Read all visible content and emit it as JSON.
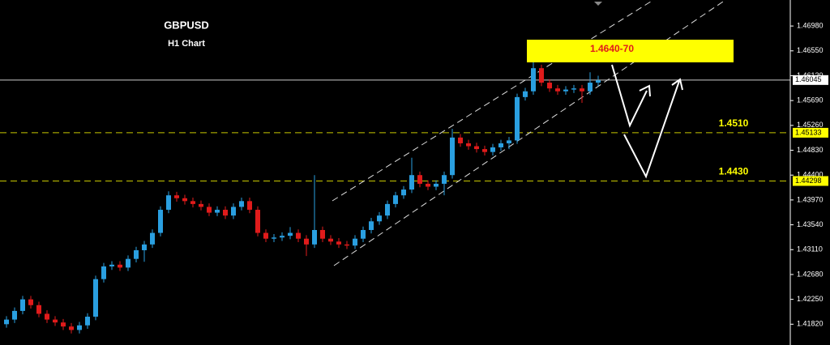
{
  "chart_data": {
    "type": "candlestick",
    "title": "GBPUSD",
    "subtitle": "H1 Chart",
    "up_color": "#2a9fe0",
    "down_color": "#e01b1b",
    "ylim": [
      1.4146,
      1.4743
    ],
    "yticks": [
      {
        "value": 1.4698,
        "label": "1.46980"
      },
      {
        "value": 1.4655,
        "label": "1.46550"
      },
      {
        "value": 1.4612,
        "label": "1.46120"
      },
      {
        "value": 1.4569,
        "label": "1.45690"
      },
      {
        "value": 1.4526,
        "label": "1.45260"
      },
      {
        "value": 1.4483,
        "label": "1.44830"
      },
      {
        "value": 1.444,
        "label": "1.44400"
      },
      {
        "value": 1.4397,
        "label": "1.43970"
      },
      {
        "value": 1.4354,
        "label": "1.43540"
      },
      {
        "value": 1.4311,
        "label": "1.43110"
      },
      {
        "value": 1.4268,
        "label": "1.42680"
      },
      {
        "value": 1.4225,
        "label": "1.42250"
      },
      {
        "value": 1.4182,
        "label": "1.41820"
      }
    ],
    "price_lines": [
      {
        "value": 1.46045,
        "label": "1.46045",
        "color": "#ffffff",
        "note": "current"
      },
      {
        "value": 1.45133,
        "label": "1.45133",
        "color": "#c8c800",
        "level": "1.4510"
      },
      {
        "value": 1.44298,
        "label": "1.44298",
        "color": "#c8c800",
        "level": "1.4430"
      }
    ],
    "zone_label": "1.4640-70",
    "ohlc": [
      [
        1.4182,
        1.4196,
        1.4176,
        1.419
      ],
      [
        1.419,
        1.4211,
        1.4184,
        1.4205
      ],
      [
        1.4205,
        1.4231,
        1.4199,
        1.4225
      ],
      [
        1.4225,
        1.4231,
        1.4209,
        1.4215
      ],
      [
        1.4215,
        1.4221,
        1.4194,
        1.42
      ],
      [
        1.42,
        1.4206,
        1.4184,
        1.419
      ],
      [
        1.419,
        1.4196,
        1.4179,
        1.4185
      ],
      [
        1.4185,
        1.4191,
        1.4172,
        1.4178
      ],
      [
        1.4178,
        1.4184,
        1.4166,
        1.4172
      ],
      [
        1.4172,
        1.4186,
        1.4166,
        1.418
      ],
      [
        1.418,
        1.4201,
        1.4174,
        1.4195
      ],
      [
        1.4195,
        1.4266,
        1.4189,
        1.426
      ],
      [
        1.426,
        1.4288,
        1.4254,
        1.4282
      ],
      [
        1.4282,
        1.4291,
        1.4276,
        1.4285
      ],
      [
        1.4285,
        1.4291,
        1.4274,
        1.428
      ],
      [
        1.428,
        1.4301,
        1.4274,
        1.4295
      ],
      [
        1.4295,
        1.4316,
        1.4289,
        1.431
      ],
      [
        1.431,
        1.4326,
        1.429,
        1.432
      ],
      [
        1.432,
        1.4346,
        1.4314,
        1.434
      ],
      [
        1.434,
        1.4386,
        1.4334,
        1.438
      ],
      [
        1.438,
        1.4412,
        1.4374,
        1.4405
      ],
      [
        1.4405,
        1.4411,
        1.4394,
        1.44
      ],
      [
        1.44,
        1.4406,
        1.4389,
        1.4395
      ],
      [
        1.4395,
        1.4401,
        1.4384,
        1.439
      ],
      [
        1.439,
        1.4396,
        1.4379,
        1.4385
      ],
      [
        1.4385,
        1.4391,
        1.4369,
        1.4375
      ],
      [
        1.4375,
        1.4386,
        1.4369,
        1.438
      ],
      [
        1.438,
        1.4386,
        1.4364,
        1.437
      ],
      [
        1.437,
        1.4391,
        1.4364,
        1.4385
      ],
      [
        1.4385,
        1.4401,
        1.4379,
        1.4395
      ],
      [
        1.4395,
        1.4401,
        1.4374,
        1.438
      ],
      [
        1.438,
        1.4386,
        1.4334,
        1.434
      ],
      [
        1.434,
        1.4346,
        1.4324,
        1.433
      ],
      [
        1.433,
        1.4338,
        1.4324,
        1.4332
      ],
      [
        1.4332,
        1.4341,
        1.4326,
        1.4335
      ],
      [
        1.4335,
        1.435,
        1.4329,
        1.434
      ],
      [
        1.434,
        1.4346,
        1.4324,
        1.433
      ],
      [
        1.433,
        1.4336,
        1.43,
        1.432
      ],
      [
        1.432,
        1.444,
        1.4314,
        1.4345
      ],
      [
        1.4345,
        1.4351,
        1.4324,
        1.433
      ],
      [
        1.433,
        1.4336,
        1.4319,
        1.4325
      ],
      [
        1.4325,
        1.4331,
        1.4314,
        1.432
      ],
      [
        1.432,
        1.4326,
        1.4312,
        1.4318
      ],
      [
        1.4318,
        1.4336,
        1.4312,
        1.433
      ],
      [
        1.433,
        1.4351,
        1.4324,
        1.4345
      ],
      [
        1.4345,
        1.4366,
        1.4339,
        1.436
      ],
      [
        1.436,
        1.4376,
        1.4354,
        1.437
      ],
      [
        1.437,
        1.4396,
        1.4364,
        1.439
      ],
      [
        1.439,
        1.4411,
        1.4384,
        1.4405
      ],
      [
        1.4405,
        1.4421,
        1.4399,
        1.4415
      ],
      [
        1.4415,
        1.447,
        1.4409,
        1.444
      ],
      [
        1.444,
        1.4446,
        1.4419,
        1.4425
      ],
      [
        1.4425,
        1.4431,
        1.4414,
        1.442
      ],
      [
        1.442,
        1.4431,
        1.4414,
        1.4425
      ],
      [
        1.4425,
        1.4446,
        1.4405,
        1.444
      ],
      [
        1.444,
        1.452,
        1.4434,
        1.4505
      ],
      [
        1.4505,
        1.4511,
        1.4489,
        1.4495
      ],
      [
        1.4495,
        1.4501,
        1.4484,
        1.449
      ],
      [
        1.449,
        1.4496,
        1.4479,
        1.4485
      ],
      [
        1.4485,
        1.4491,
        1.4474,
        1.448
      ],
      [
        1.448,
        1.4494,
        1.4474,
        1.4488
      ],
      [
        1.4488,
        1.4501,
        1.4482,
        1.4495
      ],
      [
        1.4495,
        1.4506,
        1.4485,
        1.45
      ],
      [
        1.45,
        1.4581,
        1.4494,
        1.4575
      ],
      [
        1.4575,
        1.4591,
        1.4569,
        1.4585
      ],
      [
        1.4585,
        1.464,
        1.4579,
        1.4625
      ],
      [
        1.4625,
        1.4631,
        1.4594,
        1.46
      ],
      [
        1.46,
        1.4606,
        1.4584,
        1.459
      ],
      [
        1.459,
        1.4596,
        1.4579,
        1.4585
      ],
      [
        1.4585,
        1.4594,
        1.4579,
        1.4588
      ],
      [
        1.4588,
        1.4596,
        1.4582,
        1.459
      ],
      [
        1.459,
        1.4596,
        1.4565,
        1.4585
      ],
      [
        1.4585,
        1.4618,
        1.4579,
        1.46
      ],
      [
        1.46,
        1.4612,
        1.4594,
        1.4604
      ]
    ]
  }
}
